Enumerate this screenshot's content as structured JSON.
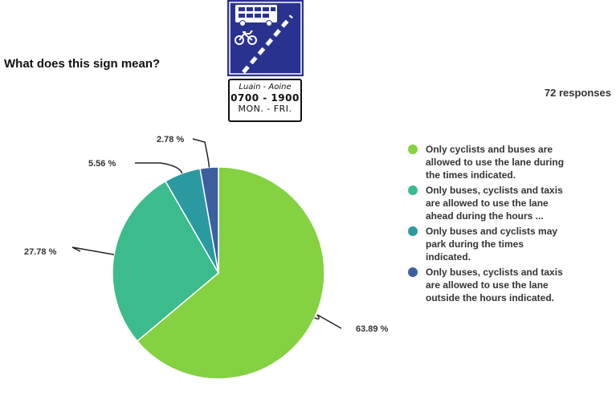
{
  "question": "What does this sign mean?",
  "responses": "72 responses",
  "sign": {
    "colors": {
      "blue": "#2a3290",
      "white": "#ffffff"
    },
    "icons": [
      "bus-icon",
      "bicycle-icon"
    ],
    "plate_line1": "Luain - Aoine",
    "plate_line2": "0700 - 1900",
    "plate_line3": "MON. - FRI."
  },
  "chart_data": {
    "type": "pie",
    "start": "12 o'clock",
    "direction": "clockwise",
    "legend_placement": "right",
    "series": [
      {
        "label": "Only cyclists and buses are\nallowed to use the lane during\nthe times indicated.",
        "value": 63.89,
        "display": "63.89 %",
        "color": "#84d142"
      },
      {
        "label": "Only buses, cyclists and taxis\nare allowed to use the lane\nahead during the hours ...",
        "value": 27.78,
        "display": "27.78 %",
        "color": "#3cbb8c"
      },
      {
        "label": "Only buses and cyclists may\npark during the times\nindicated.",
        "value": 5.56,
        "display": "5.56 %",
        "color": "#2a9aa0"
      },
      {
        "label": "Only buses, cyclists and taxis\nare allowed to use the lane\noutside the hours indicated.",
        "value": 2.78,
        "display": "2.78 %",
        "color": "#3b5fa0"
      }
    ]
  }
}
